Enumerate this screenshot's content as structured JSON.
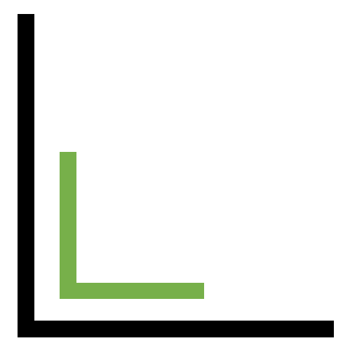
{
  "icon": {
    "name": "two-nested-l-shapes",
    "outer_color": "#000000",
    "inner_color": "#77b04a",
    "background": "#ffffff"
  }
}
